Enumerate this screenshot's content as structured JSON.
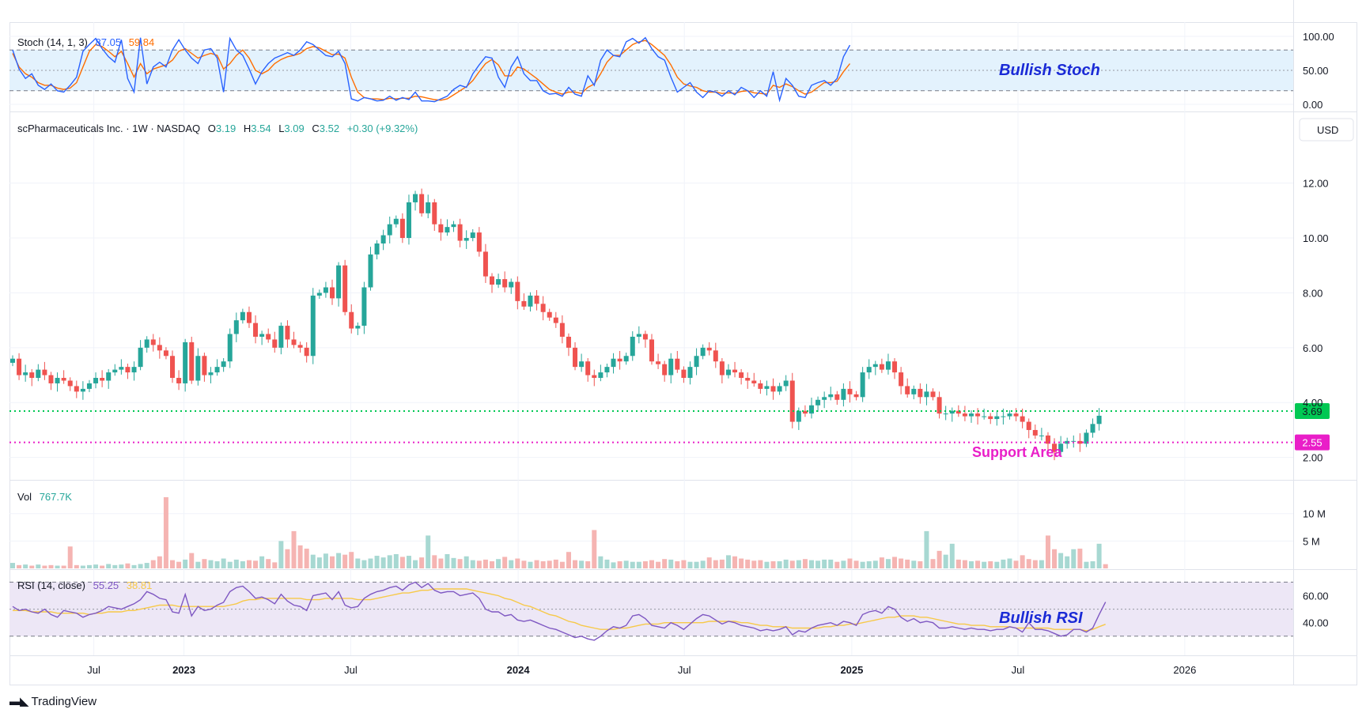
{
  "brand": {
    "name": "TradingView"
  },
  "instrument": {
    "name": "scPharmaceuticals Inc.",
    "interval": "1W",
    "exchange": "NASDAQ",
    "ohlc": {
      "o_label": "O",
      "o": "3.19",
      "h_label": "H",
      "h": "3.54",
      "l_label": "L",
      "l": "3.09",
      "c_label": "C",
      "c": "3.52",
      "change": "+0.30 (+9.32%)"
    },
    "currency": "USD"
  },
  "colors": {
    "up": "#26a69a",
    "down": "#ef5350",
    "stoch_k": "#2962ff",
    "stoch_d": "#ff6d00",
    "rsi": "#7e57c2",
    "rsi_ma": "#f7c948",
    "band_stoch": "#e3f2fd",
    "band_rsi": "#ede7f6",
    "resistance": "#00c853",
    "support": "#e91ec8",
    "annotation": "#1a2ad6"
  },
  "annotations": {
    "stoch": "Bullish Stoch",
    "rsi": "Bullish RSI",
    "support": "Support Area"
  },
  "chart_data": [
    {
      "type": "line",
      "panel": "stochastic",
      "legend": "Stoch (14, 1, 3)",
      "ylim": [
        0,
        100
      ],
      "y_ticks": [
        "100.00",
        "50.00",
        "0.00"
      ],
      "bands": [
        20,
        80
      ],
      "series": [
        {
          "name": "%K",
          "last": "87.05",
          "values": [
            80,
            52,
            38,
            45,
            28,
            22,
            30,
            20,
            18,
            28,
            40,
            78,
            88,
            97,
            82,
            70,
            62,
            95,
            38,
            18,
            98,
            30,
            55,
            62,
            55,
            80,
            95,
            80,
            68,
            60,
            80,
            82,
            68,
            18,
            97,
            80,
            72,
            52,
            30,
            48,
            60,
            68,
            72,
            76,
            72,
            80,
            92,
            88,
            80,
            72,
            70,
            78,
            60,
            8,
            5,
            10,
            8,
            5,
            6,
            12,
            6,
            10,
            7,
            18,
            5,
            5,
            4,
            8,
            12,
            22,
            28,
            25,
            45,
            58,
            70,
            68,
            40,
            25,
            55,
            70,
            45,
            35,
            35,
            20,
            15,
            16,
            12,
            25,
            15,
            12,
            42,
            28,
            65,
            80,
            72,
            70,
            92,
            97,
            90,
            98,
            82,
            70,
            65,
            40,
            18,
            25,
            32,
            18,
            10,
            20,
            18,
            12,
            20,
            14,
            25,
            20,
            10,
            20,
            12,
            48,
            6,
            38,
            28,
            12,
            10,
            28,
            32,
            35,
            28,
            38,
            70,
            87.05
          ]
        },
        {
          "name": "%D",
          "last": "59.84",
          "values": [
            75,
            55,
            45,
            40,
            32,
            28,
            28,
            24,
            22,
            24,
            32,
            55,
            78,
            88,
            85,
            78,
            70,
            78,
            60,
            40,
            60,
            45,
            52,
            55,
            58,
            65,
            78,
            82,
            75,
            68,
            72,
            75,
            72,
            52,
            60,
            72,
            80,
            68,
            50,
            45,
            50,
            60,
            66,
            70,
            72,
            75,
            82,
            85,
            83,
            78,
            73,
            74,
            68,
            40,
            18,
            10,
            8,
            8,
            7,
            9,
            8,
            9,
            9,
            12,
            11,
            9,
            7,
            6,
            8,
            14,
            20,
            26,
            35,
            48,
            60,
            66,
            58,
            42,
            42,
            55,
            52,
            45,
            38,
            30,
            22,
            18,
            15,
            18,
            18,
            16,
            25,
            30,
            45,
            62,
            72,
            72,
            80,
            88,
            92,
            94,
            88,
            80,
            72,
            58,
            40,
            30,
            27,
            25,
            20,
            18,
            18,
            16,
            17,
            16,
            19,
            20,
            17,
            16,
            15,
            28,
            25,
            30,
            26,
            20,
            15,
            18,
            25,
            32,
            32,
            34,
            48,
            59.84
          ]
        }
      ]
    },
    {
      "type": "candlestick",
      "panel": "price",
      "title": "scPharmaceuticals Inc. · 1W · NASDAQ",
      "ylim": [
        1.5,
        13.2
      ],
      "y_ticks": [
        "12.00",
        "10.00",
        "8.00",
        "6.00",
        "4.00",
        "2.00"
      ],
      "x_ticks": [
        "Jul",
        "2023",
        "Jul",
        "2024",
        "Jul",
        "2025",
        "Jul",
        "2026"
      ],
      "x_tick_positions": [
        12.7,
        26.8,
        52.9,
        79.1,
        105.1,
        131.3,
        157.3,
        183.4
      ],
      "closes": [
        5.6,
        5.0,
        5.1,
        4.9,
        5.2,
        5.0,
        4.7,
        4.9,
        4.8,
        4.6,
        4.4,
        4.5,
        4.7,
        4.9,
        4.8,
        5.1,
        5.2,
        5.3,
        5.1,
        5.3,
        6.0,
        6.3,
        6.1,
        5.9,
        5.7,
        4.9,
        4.7,
        6.2,
        4.8,
        5.7,
        5.0,
        5.1,
        5.3,
        5.5,
        6.5,
        7.0,
        7.3,
        6.9,
        6.4,
        6.5,
        6.3,
        6.0,
        6.8,
        6.3,
        6.1,
        6.0,
        5.7,
        7.9,
        8.0,
        8.2,
        7.8,
        9.0,
        7.3,
        6.7,
        6.8,
        8.2,
        9.4,
        9.8,
        10.1,
        10.5,
        10.7,
        10.0,
        11.3,
        11.6,
        10.9,
        11.3,
        10.5,
        10.2,
        10.4,
        10.5,
        9.9,
        10.0,
        10.2,
        9.5,
        8.6,
        8.3,
        8.5,
        8.2,
        8.4,
        7.7,
        7.5,
        7.9,
        7.6,
        7.3,
        7.1,
        6.9,
        6.4,
        6.0,
        5.3,
        5.5,
        5.0,
        4.9,
        5.1,
        5.3,
        5.6,
        5.5,
        5.7,
        6.4,
        6.5,
        6.3,
        5.5,
        5.4,
        5.0,
        5.6,
        5.2,
        4.9,
        5.3,
        5.7,
        6.0,
        5.9,
        5.5,
        5.0,
        5.2,
        5.1,
        4.9,
        4.8,
        4.7,
        4.5,
        4.6,
        4.4,
        4.6,
        4.8,
        3.3,
        3.7,
        3.6,
        3.9,
        4.1,
        4.2,
        4.3,
        4.1,
        4.5,
        4.3,
        4.2,
        5.1,
        5.3,
        5.4,
        5.2,
        5.5,
        5.1,
        4.6,
        4.3,
        4.5,
        4.2,
        4.4,
        4.2,
        3.6,
        3.6,
        3.7,
        3.6,
        3.5,
        3.6,
        3.5,
        3.5,
        3.4,
        3.5,
        3.5,
        3.6,
        3.5,
        3.3,
        3.0,
        2.8,
        2.8,
        2.5,
        2.2,
        2.5,
        2.6,
        2.6,
        2.5,
        2.9,
        3.22,
        3.52
      ]
    },
    {
      "type": "bar",
      "panel": "volume",
      "legend": "Vol",
      "last": "767.7K",
      "y_ticks": [
        "10 M",
        "5 M"
      ],
      "ylim": [
        0,
        14
      ],
      "values": [
        1.0,
        0.6,
        0.7,
        0.5,
        0.7,
        0.5,
        0.6,
        0.5,
        0.5,
        4.0,
        0.6,
        0.5,
        0.6,
        0.7,
        0.5,
        0.8,
        0.6,
        0.7,
        0.9,
        0.6,
        0.8,
        1.0,
        1.5,
        2.2,
        13.0,
        1.5,
        1.2,
        1.6,
        2.8,
        1.2,
        1.7,
        1.5,
        1.3,
        1.8,
        1.2,
        1.6,
        1.3,
        1.5,
        1.4,
        2.2,
        1.7,
        1.1,
        5.0,
        3.5,
        6.8,
        4.2,
        3.6,
        2.5,
        2.0,
        2.7,
        2.2,
        2.8,
        2.5,
        3.0,
        1.8,
        1.5,
        1.8,
        2.3,
        2.0,
        2.4,
        2.6,
        2.1,
        2.3,
        1.5,
        2.0,
        6.0,
        2.4,
        1.8,
        2.6,
        1.9,
        1.7,
        2.2,
        1.5,
        1.4,
        1.6,
        1.3,
        1.7,
        2.1,
        1.5,
        1.8,
        1.4,
        1.2,
        1.5,
        1.3,
        1.4,
        1.6,
        1.2,
        3.0,
        1.5,
        1.4,
        1.3,
        7.0,
        2.2,
        1.6,
        1.1,
        1.3,
        1.4,
        1.2,
        1.2,
        1.3,
        1.5,
        1.2,
        1.7,
        1.6,
        1.3,
        1.5,
        1.2,
        1.2,
        1.4,
        2.0,
        1.5,
        1.6,
        2.4,
        2.2,
        1.8,
        1.6,
        1.4,
        1.5,
        1.2,
        1.3,
        1.3,
        1.6,
        1.4,
        1.5,
        1.7,
        1.5,
        1.4,
        1.6,
        1.6,
        1.2,
        1.4,
        1.8,
        1.4,
        1.2,
        1.3,
        1.4,
        2.0,
        1.7,
        2.1,
        1.8,
        1.6,
        1.4,
        1.3,
        6.8,
        1.7,
        3.2,
        2.5,
        4.5,
        1.6,
        1.5,
        1.3,
        1.4,
        1.2,
        1.3,
        1.2,
        1.6,
        1.8,
        1.4,
        2.4,
        1.7,
        1.5,
        1.5,
        6.0,
        3.5,
        2.8,
        2.2,
        3.5,
        3.6,
        1.2,
        1.3,
        4.5,
        0.77
      ]
    },
    {
      "type": "line",
      "panel": "rsi",
      "legend": "RSI (14, close)",
      "ylim": [
        24,
        72
      ],
      "y_ticks": [
        "60.00",
        "40.00"
      ],
      "bands": [
        30,
        70
      ],
      "series": [
        {
          "name": "RSI",
          "last": "55.25",
          "values": [
            52,
            49,
            50,
            48,
            47,
            50,
            46,
            44,
            49,
            48,
            47,
            44,
            46,
            47,
            49,
            52,
            51,
            50,
            52,
            54,
            57,
            63,
            61,
            58,
            57,
            48,
            47,
            61,
            45,
            52,
            49,
            50,
            53,
            55,
            63,
            66,
            67,
            63,
            58,
            59,
            57,
            54,
            61,
            56,
            53,
            52,
            49,
            60,
            61,
            62,
            57,
            63,
            53,
            51,
            52,
            58,
            61,
            63,
            64,
            66,
            67,
            64,
            68,
            70,
            66,
            69,
            64,
            62,
            63,
            63,
            60,
            61,
            62,
            58,
            50,
            48,
            48,
            45,
            46,
            42,
            41,
            42,
            40,
            38,
            36,
            35,
            33,
            31,
            29,
            30,
            28,
            27,
            30,
            34,
            37,
            36,
            38,
            45,
            46,
            43,
            38,
            37,
            36,
            40,
            38,
            35,
            39,
            43,
            46,
            45,
            42,
            39,
            41,
            40,
            38,
            37,
            36,
            34,
            35,
            34,
            35,
            37,
            31,
            34,
            33,
            36,
            38,
            39,
            40,
            38,
            41,
            40,
            38,
            46,
            48,
            49,
            47,
            52,
            50,
            44,
            41,
            43,
            40,
            41,
            40,
            36,
            36,
            37,
            36,
            35,
            36,
            35,
            35,
            34,
            35,
            35,
            37,
            36,
            33,
            40,
            35,
            35,
            34,
            32,
            30,
            31,
            35,
            35,
            33,
            36,
            46,
            55.25
          ]
        },
        {
          "name": "MA",
          "last": "38.81",
          "values": [
            49,
            49,
            49,
            48,
            48,
            48,
            48,
            47,
            47,
            47,
            47,
            47,
            46,
            47,
            47,
            48,
            48,
            48,
            49,
            49,
            50,
            51,
            52,
            53,
            53,
            53,
            52,
            52,
            52,
            52,
            52,
            52,
            52,
            52,
            53,
            54,
            56,
            57,
            57,
            58,
            58,
            58,
            58,
            58,
            58,
            58,
            57,
            57,
            57,
            58,
            58,
            58,
            58,
            58,
            57,
            57,
            57,
            58,
            59,
            60,
            61,
            62,
            62,
            63,
            64,
            64,
            65,
            65,
            65,
            65,
            65,
            65,
            64,
            63,
            62,
            61,
            60,
            58,
            57,
            55,
            53,
            52,
            50,
            48,
            46,
            45,
            43,
            41,
            40,
            38,
            37,
            36,
            35,
            35,
            35,
            36,
            36,
            37,
            38,
            39,
            39,
            39,
            40,
            40,
            40,
            40,
            40,
            40,
            40,
            41,
            41,
            41,
            41,
            41,
            40,
            40,
            39,
            38,
            38,
            37,
            37,
            37,
            36,
            36,
            36,
            36,
            36,
            37,
            37,
            38,
            38,
            39,
            39,
            40,
            41,
            42,
            43,
            44,
            44,
            45,
            45,
            45,
            44,
            44,
            43,
            42,
            41,
            40,
            39,
            39,
            38,
            38,
            38,
            37,
            37,
            37,
            37,
            36,
            36,
            36,
            36,
            36,
            36,
            35,
            35,
            35,
            35,
            35,
            34,
            35,
            37,
            38.81
          ]
        }
      ]
    }
  ],
  "levels": [
    {
      "name": "resistance",
      "value": 3.69,
      "label": "3.69"
    },
    {
      "name": "support",
      "value": 2.55,
      "label": "2.55"
    }
  ]
}
